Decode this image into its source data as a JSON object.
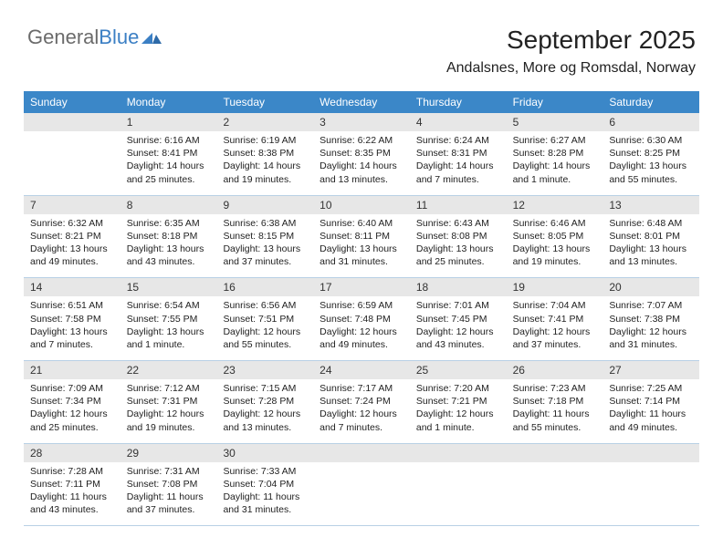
{
  "logo": {
    "text1": "General",
    "text2": "Blue"
  },
  "title": "September 2025",
  "location": "Andalsnes, More og Romsdal, Norway",
  "colors": {
    "header_bar": "#3b87c8",
    "header_text": "#ffffff",
    "daynum_bg": "#e7e7e7",
    "cell_text": "#222222",
    "divider": "#b8d0e5",
    "logo_gray": "#6b6b6b",
    "logo_blue": "#3b7fc4",
    "page_bg": "#ffffff"
  },
  "typography": {
    "title_fontsize": 28,
    "location_fontsize": 16,
    "dayheader_fontsize": 12,
    "daynum_fontsize": 12,
    "body_fontsize": 10.5
  },
  "day_names": [
    "Sunday",
    "Monday",
    "Tuesday",
    "Wednesday",
    "Thursday",
    "Friday",
    "Saturday"
  ],
  "weeks": [
    {
      "nums": [
        "",
        "1",
        "2",
        "3",
        "4",
        "5",
        "6"
      ],
      "cells": [
        {
          "sunrise": "",
          "sunset": "",
          "daylight": ""
        },
        {
          "sunrise": "Sunrise: 6:16 AM",
          "sunset": "Sunset: 8:41 PM",
          "daylight": "Daylight: 14 hours and 25 minutes."
        },
        {
          "sunrise": "Sunrise: 6:19 AM",
          "sunset": "Sunset: 8:38 PM",
          "daylight": "Daylight: 14 hours and 19 minutes."
        },
        {
          "sunrise": "Sunrise: 6:22 AM",
          "sunset": "Sunset: 8:35 PM",
          "daylight": "Daylight: 14 hours and 13 minutes."
        },
        {
          "sunrise": "Sunrise: 6:24 AM",
          "sunset": "Sunset: 8:31 PM",
          "daylight": "Daylight: 14 hours and 7 minutes."
        },
        {
          "sunrise": "Sunrise: 6:27 AM",
          "sunset": "Sunset: 8:28 PM",
          "daylight": "Daylight: 14 hours and 1 minute."
        },
        {
          "sunrise": "Sunrise: 6:30 AM",
          "sunset": "Sunset: 8:25 PM",
          "daylight": "Daylight: 13 hours and 55 minutes."
        }
      ]
    },
    {
      "nums": [
        "7",
        "8",
        "9",
        "10",
        "11",
        "12",
        "13"
      ],
      "cells": [
        {
          "sunrise": "Sunrise: 6:32 AM",
          "sunset": "Sunset: 8:21 PM",
          "daylight": "Daylight: 13 hours and 49 minutes."
        },
        {
          "sunrise": "Sunrise: 6:35 AM",
          "sunset": "Sunset: 8:18 PM",
          "daylight": "Daylight: 13 hours and 43 minutes."
        },
        {
          "sunrise": "Sunrise: 6:38 AM",
          "sunset": "Sunset: 8:15 PM",
          "daylight": "Daylight: 13 hours and 37 minutes."
        },
        {
          "sunrise": "Sunrise: 6:40 AM",
          "sunset": "Sunset: 8:11 PM",
          "daylight": "Daylight: 13 hours and 31 minutes."
        },
        {
          "sunrise": "Sunrise: 6:43 AM",
          "sunset": "Sunset: 8:08 PM",
          "daylight": "Daylight: 13 hours and 25 minutes."
        },
        {
          "sunrise": "Sunrise: 6:46 AM",
          "sunset": "Sunset: 8:05 PM",
          "daylight": "Daylight: 13 hours and 19 minutes."
        },
        {
          "sunrise": "Sunrise: 6:48 AM",
          "sunset": "Sunset: 8:01 PM",
          "daylight": "Daylight: 13 hours and 13 minutes."
        }
      ]
    },
    {
      "nums": [
        "14",
        "15",
        "16",
        "17",
        "18",
        "19",
        "20"
      ],
      "cells": [
        {
          "sunrise": "Sunrise: 6:51 AM",
          "sunset": "Sunset: 7:58 PM",
          "daylight": "Daylight: 13 hours and 7 minutes."
        },
        {
          "sunrise": "Sunrise: 6:54 AM",
          "sunset": "Sunset: 7:55 PM",
          "daylight": "Daylight: 13 hours and 1 minute."
        },
        {
          "sunrise": "Sunrise: 6:56 AM",
          "sunset": "Sunset: 7:51 PM",
          "daylight": "Daylight: 12 hours and 55 minutes."
        },
        {
          "sunrise": "Sunrise: 6:59 AM",
          "sunset": "Sunset: 7:48 PM",
          "daylight": "Daylight: 12 hours and 49 minutes."
        },
        {
          "sunrise": "Sunrise: 7:01 AM",
          "sunset": "Sunset: 7:45 PM",
          "daylight": "Daylight: 12 hours and 43 minutes."
        },
        {
          "sunrise": "Sunrise: 7:04 AM",
          "sunset": "Sunset: 7:41 PM",
          "daylight": "Daylight: 12 hours and 37 minutes."
        },
        {
          "sunrise": "Sunrise: 7:07 AM",
          "sunset": "Sunset: 7:38 PM",
          "daylight": "Daylight: 12 hours and 31 minutes."
        }
      ]
    },
    {
      "nums": [
        "21",
        "22",
        "23",
        "24",
        "25",
        "26",
        "27"
      ],
      "cells": [
        {
          "sunrise": "Sunrise: 7:09 AM",
          "sunset": "Sunset: 7:34 PM",
          "daylight": "Daylight: 12 hours and 25 minutes."
        },
        {
          "sunrise": "Sunrise: 7:12 AM",
          "sunset": "Sunset: 7:31 PM",
          "daylight": "Daylight: 12 hours and 19 minutes."
        },
        {
          "sunrise": "Sunrise: 7:15 AM",
          "sunset": "Sunset: 7:28 PM",
          "daylight": "Daylight: 12 hours and 13 minutes."
        },
        {
          "sunrise": "Sunrise: 7:17 AM",
          "sunset": "Sunset: 7:24 PM",
          "daylight": "Daylight: 12 hours and 7 minutes."
        },
        {
          "sunrise": "Sunrise: 7:20 AM",
          "sunset": "Sunset: 7:21 PM",
          "daylight": "Daylight: 12 hours and 1 minute."
        },
        {
          "sunrise": "Sunrise: 7:23 AM",
          "sunset": "Sunset: 7:18 PM",
          "daylight": "Daylight: 11 hours and 55 minutes."
        },
        {
          "sunrise": "Sunrise: 7:25 AM",
          "sunset": "Sunset: 7:14 PM",
          "daylight": "Daylight: 11 hours and 49 minutes."
        }
      ]
    },
    {
      "nums": [
        "28",
        "29",
        "30",
        "",
        "",
        "",
        ""
      ],
      "cells": [
        {
          "sunrise": "Sunrise: 7:28 AM",
          "sunset": "Sunset: 7:11 PM",
          "daylight": "Daylight: 11 hours and 43 minutes."
        },
        {
          "sunrise": "Sunrise: 7:31 AM",
          "sunset": "Sunset: 7:08 PM",
          "daylight": "Daylight: 11 hours and 37 minutes."
        },
        {
          "sunrise": "Sunrise: 7:33 AM",
          "sunset": "Sunset: 7:04 PM",
          "daylight": "Daylight: 11 hours and 31 minutes."
        },
        {
          "sunrise": "",
          "sunset": "",
          "daylight": ""
        },
        {
          "sunrise": "",
          "sunset": "",
          "daylight": ""
        },
        {
          "sunrise": "",
          "sunset": "",
          "daylight": ""
        },
        {
          "sunrise": "",
          "sunset": "",
          "daylight": ""
        }
      ]
    }
  ]
}
